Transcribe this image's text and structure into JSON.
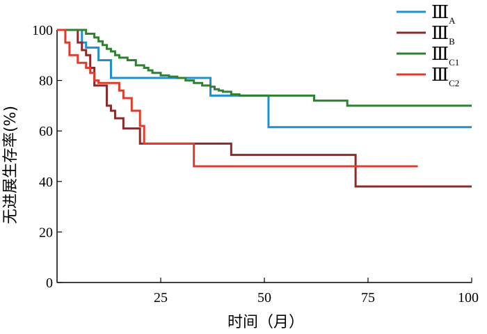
{
  "chart_data": {
    "type": "line",
    "step": true,
    "xlabel": "时间（月）",
    "ylabel": "无进展生存率(%)",
    "xlim": [
      0,
      100
    ],
    "ylim": [
      0,
      100
    ],
    "xticks": [
      25,
      50,
      75,
      100
    ],
    "yticks": [
      0,
      20,
      40,
      60,
      80,
      100
    ],
    "grid": false,
    "legend_position": "top-right",
    "series": [
      {
        "name": "Ⅲ",
        "sub": "A",
        "color": "#1f8fd0",
        "x": [
          0,
          6,
          7,
          9,
          10,
          13,
          37,
          51,
          100
        ],
        "y": [
          100,
          95,
          93,
          93,
          88,
          81,
          74,
          61.5,
          61.5
        ]
      },
      {
        "name": "Ⅲ",
        "sub": "B",
        "color": "#8b2a2a",
        "x": [
          0,
          5,
          6,
          7,
          8,
          9,
          12,
          13,
          14,
          16,
          20,
          42,
          72,
          100
        ],
        "y": [
          100,
          95,
          92,
          90,
          85,
          78,
          70,
          68,
          65,
          61,
          55,
          50.5,
          38,
          38
        ]
      },
      {
        "name": "Ⅲ",
        "sub": "C1",
        "color": "#2f8030",
        "x": [
          0,
          7,
          9,
          10,
          11,
          12,
          13,
          14,
          15,
          17,
          19,
          21,
          22,
          23,
          25,
          27,
          29,
          31,
          33,
          35,
          37,
          38,
          39,
          40,
          42,
          44,
          47,
          53,
          62,
          70,
          100
        ],
        "y": [
          100,
          98.5,
          97,
          95.5,
          94,
          92.5,
          91.5,
          90,
          89,
          88,
          86,
          85,
          84,
          83,
          82,
          81.5,
          81,
          80,
          79,
          78,
          77.5,
          76.5,
          76,
          75.5,
          74.5,
          74,
          74,
          74,
          72,
          70,
          70
        ]
      },
      {
        "name": "Ⅲ",
        "sub": "C2",
        "color": "#e03b2b",
        "x": [
          0,
          2,
          3,
          5,
          7,
          8,
          9,
          10,
          12,
          13,
          15,
          16,
          18,
          20,
          21,
          33,
          87
        ],
        "y": [
          100,
          95,
          90,
          87,
          85,
          83,
          80,
          79,
          79,
          79,
          76,
          73,
          68,
          62,
          55,
          46,
          46
        ]
      }
    ]
  }
}
